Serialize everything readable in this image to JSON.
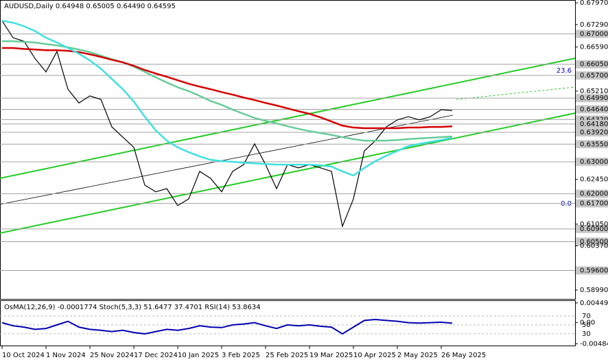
{
  "chart_data": [
    {
      "type": "line",
      "title": "AUDUSD,Daily  0.64948 0.65005 0.64490 0.64595",
      "ylim": [
        0.5871,
        0.6806
      ],
      "yticks": [
        {
          "value": 0.6797,
          "label": "0.67970"
        },
        {
          "value": 0.6729,
          "label": "0.67290"
        },
        {
          "value": 0.6659,
          "label": "0.66590"
        },
        {
          "value": 0.6521,
          "label": "0.65210"
        },
        {
          "value": 0.6245,
          "label": "0.62450"
        },
        {
          "value": 0.6105,
          "label": "0.61050"
        },
        {
          "value": 0.6037,
          "label": "0.60370"
        },
        {
          "value": 0.5899,
          "label": "0.58990"
        }
      ],
      "levels": [
        {
          "value": 0.67,
          "label": "0.67000"
        },
        {
          "value": 0.6605,
          "label": "0.66050"
        },
        {
          "value": 0.657,
          "label": "0.65700"
        },
        {
          "value": 0.6499,
          "label": "0.64990"
        },
        {
          "value": 0.6464,
          "label": "0.64640"
        },
        {
          "value": 0.6432,
          "label": "0.64320"
        },
        {
          "value": 0.6418,
          "label": "0.64180"
        },
        {
          "value": 0.6392,
          "label": "0.63920"
        },
        {
          "value": 0.6355,
          "label": "0.63550"
        },
        {
          "value": 0.63,
          "label": "0.63000"
        },
        {
          "value": 0.62,
          "label": "0.62000"
        },
        {
          "value": 0.617,
          "label": "0.61700"
        },
        {
          "value": 0.609,
          "label": "0.60900"
        },
        {
          "value": 0.605,
          "label": "0.60500"
        },
        {
          "value": 0.596,
          "label": "0.59600"
        }
      ],
      "xticks": [
        {
          "value": 0,
          "label": "10 Oct 2024"
        },
        {
          "value": 4,
          "label": "1 Nov 2024"
        },
        {
          "value": 8,
          "label": "25 Nov 2024"
        },
        {
          "value": 12,
          "label": "17 Dec 2024"
        },
        {
          "value": 16,
          "label": "10 Jan 2025"
        },
        {
          "value": 20,
          "label": "3 Feb 2025"
        },
        {
          "value": 24,
          "label": "25 Feb 2025"
        },
        {
          "value": 28,
          "label": "19 Mar 2025"
        },
        {
          "value": 32,
          "label": "10 Apr 2025"
        },
        {
          "value": 36,
          "label": "2 May 2025"
        },
        {
          "value": 40,
          "label": "26 May 2025"
        }
      ],
      "annotations": [
        "23.6",
        "0.0"
      ],
      "series": [
        {
          "color": "#000000",
          "values": [
            0.6741,
            0.6688,
            0.6677,
            0.6623,
            0.6581,
            0.6645,
            0.6527,
            0.6484,
            0.6506,
            0.6495,
            0.6409,
            0.6377,
            0.6345,
            0.6227,
            0.6206,
            0.6216,
            0.6163,
            0.6184,
            0.627,
            0.6248,
            0.6206,
            0.627,
            0.6291,
            0.6356,
            0.6291,
            0.6216,
            0.6291,
            0.6281,
            0.6291,
            0.6281,
            0.627,
            0.6098,
            0.6184,
            0.6334,
            0.6366,
            0.6409,
            0.6431,
            0.6441,
            0.6431,
            0.6441,
            0.6463,
            0.646
          ]
        },
        {
          "color": "#66cc99",
          "values": [
            0.6677,
            0.6677,
            0.6675,
            0.6673,
            0.6668,
            0.6664,
            0.6658,
            0.6651,
            0.6643,
            0.6632,
            0.6621,
            0.6611,
            0.6598,
            0.6581,
            0.6564,
            0.6548,
            0.6533,
            0.6521,
            0.6506,
            0.649,
            0.6478,
            0.6463,
            0.645,
            0.6437,
            0.6428,
            0.642,
            0.6411,
            0.6403,
            0.6396,
            0.639,
            0.6384,
            0.6377,
            0.6371,
            0.6366,
            0.6366,
            0.6366,
            0.6368,
            0.6371,
            0.6373,
            0.6375,
            0.6377,
            0.6379
          ]
        },
        {
          "color": "#d40000",
          "values": [
            0.6656,
            0.6656,
            0.6653,
            0.6651,
            0.6649,
            0.6649,
            0.6647,
            0.6643,
            0.6636,
            0.6628,
            0.6619,
            0.6611,
            0.66,
            0.6587,
            0.6576,
            0.6566,
            0.6555,
            0.6544,
            0.6535,
            0.6527,
            0.6518,
            0.651,
            0.6501,
            0.6493,
            0.6484,
            0.6476,
            0.6467,
            0.6458,
            0.645,
            0.6439,
            0.6426,
            0.6413,
            0.6407,
            0.6405,
            0.6405,
            0.6405,
            0.6405,
            0.6407,
            0.6407,
            0.6409,
            0.6409,
            0.6411
          ]
        },
        {
          "color": "#40e0e0",
          "values": [
            0.6741,
            0.6735,
            0.6724,
            0.6709,
            0.6688,
            0.6673,
            0.6656,
            0.6638,
            0.6617,
            0.6591,
            0.6559,
            0.6527,
            0.6488,
            0.6441,
            0.6398,
            0.6366,
            0.6345,
            0.633,
            0.6317,
            0.6306,
            0.6302,
            0.63,
            0.6297,
            0.6295,
            0.6293,
            0.6291,
            0.6291,
            0.6291,
            0.6291,
            0.6289,
            0.6285,
            0.627,
            0.6257,
            0.6281,
            0.6302,
            0.6319,
            0.6334,
            0.6349,
            0.6356,
            0.6362,
            0.6368,
            0.6375
          ]
        }
      ]
    },
    {
      "type": "line",
      "title": "OsMA(12,26,9) -0.0001774  Stoch(5,3,3) 51.6477 37.4701  RSI(14) 53.8634",
      "ylim": [
        2.3,
        105
      ],
      "yticks": [
        30,
        50,
        70
      ],
      "y2lim": [
        -0.0054,
        0.0051
      ],
      "y2ticks": [
        {
          "value": 0.004496,
          "label": "0.004496"
        },
        {
          "value": 0,
          "label": "0.00"
        },
        {
          "value": -0.004843,
          "label": "-0.004843"
        }
      ],
      "series": [
        {
          "color": "#0000b0",
          "values": [
            55,
            48,
            45,
            40,
            42,
            50,
            58,
            45,
            40,
            38,
            35,
            38,
            33,
            30,
            35,
            40,
            38,
            42,
            48,
            45,
            44,
            50,
            52,
            55,
            48,
            42,
            50,
            48,
            50,
            47,
            45,
            30,
            45,
            60,
            62,
            60,
            58,
            55,
            54,
            55,
            56,
            53.86
          ]
        }
      ]
    }
  ]
}
